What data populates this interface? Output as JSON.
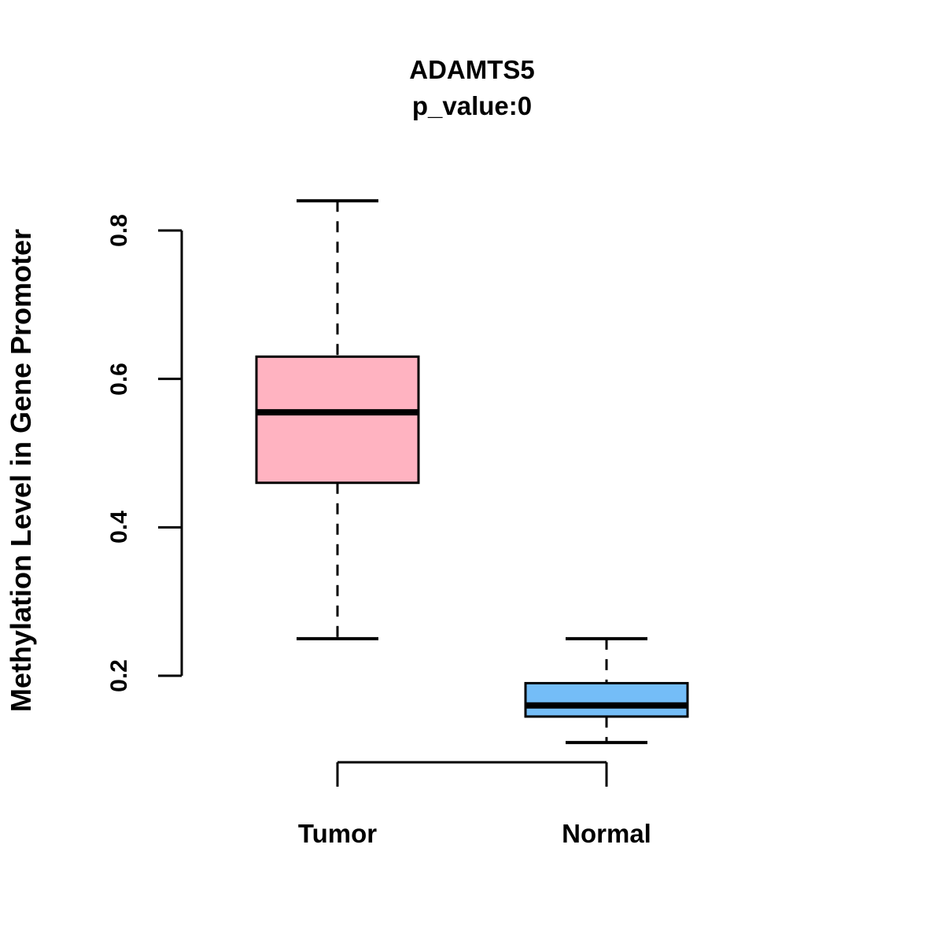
{
  "figure": {
    "background": "#FFFFFF",
    "text_color": "#000000"
  },
  "chart_data": {
    "type": "boxplot",
    "title": "ADAMTS5",
    "subtitle": "p_value:0",
    "ylabel": "Methylation Level in Gene Promoter",
    "xlabel": "",
    "categories": [
      "Tumor",
      "Normal"
    ],
    "y_ticks": [
      0.2,
      0.4,
      0.6,
      0.8
    ],
    "y_tick_labels": [
      "0.2",
      "0.4",
      "0.6",
      "0.8"
    ],
    "ylim": [
      0.08,
      0.88
    ],
    "grid": false,
    "legend": "none",
    "series": [
      {
        "name": "Tumor",
        "fill_color": "#FFB3C1",
        "whisker_low": 0.25,
        "q1": 0.46,
        "median": 0.555,
        "q3": 0.63,
        "whisker_high": 0.84,
        "outliers": []
      },
      {
        "name": "Normal",
        "fill_color": "#74BDF7",
        "whisker_low": 0.11,
        "q1": 0.145,
        "median": 0.16,
        "q3": 0.19,
        "whisker_high": 0.25,
        "outliers": []
      }
    ],
    "colors": {
      "box_border": "#000000",
      "median_line": "#000000",
      "whisker": "#000000",
      "axis": "#000000"
    }
  }
}
